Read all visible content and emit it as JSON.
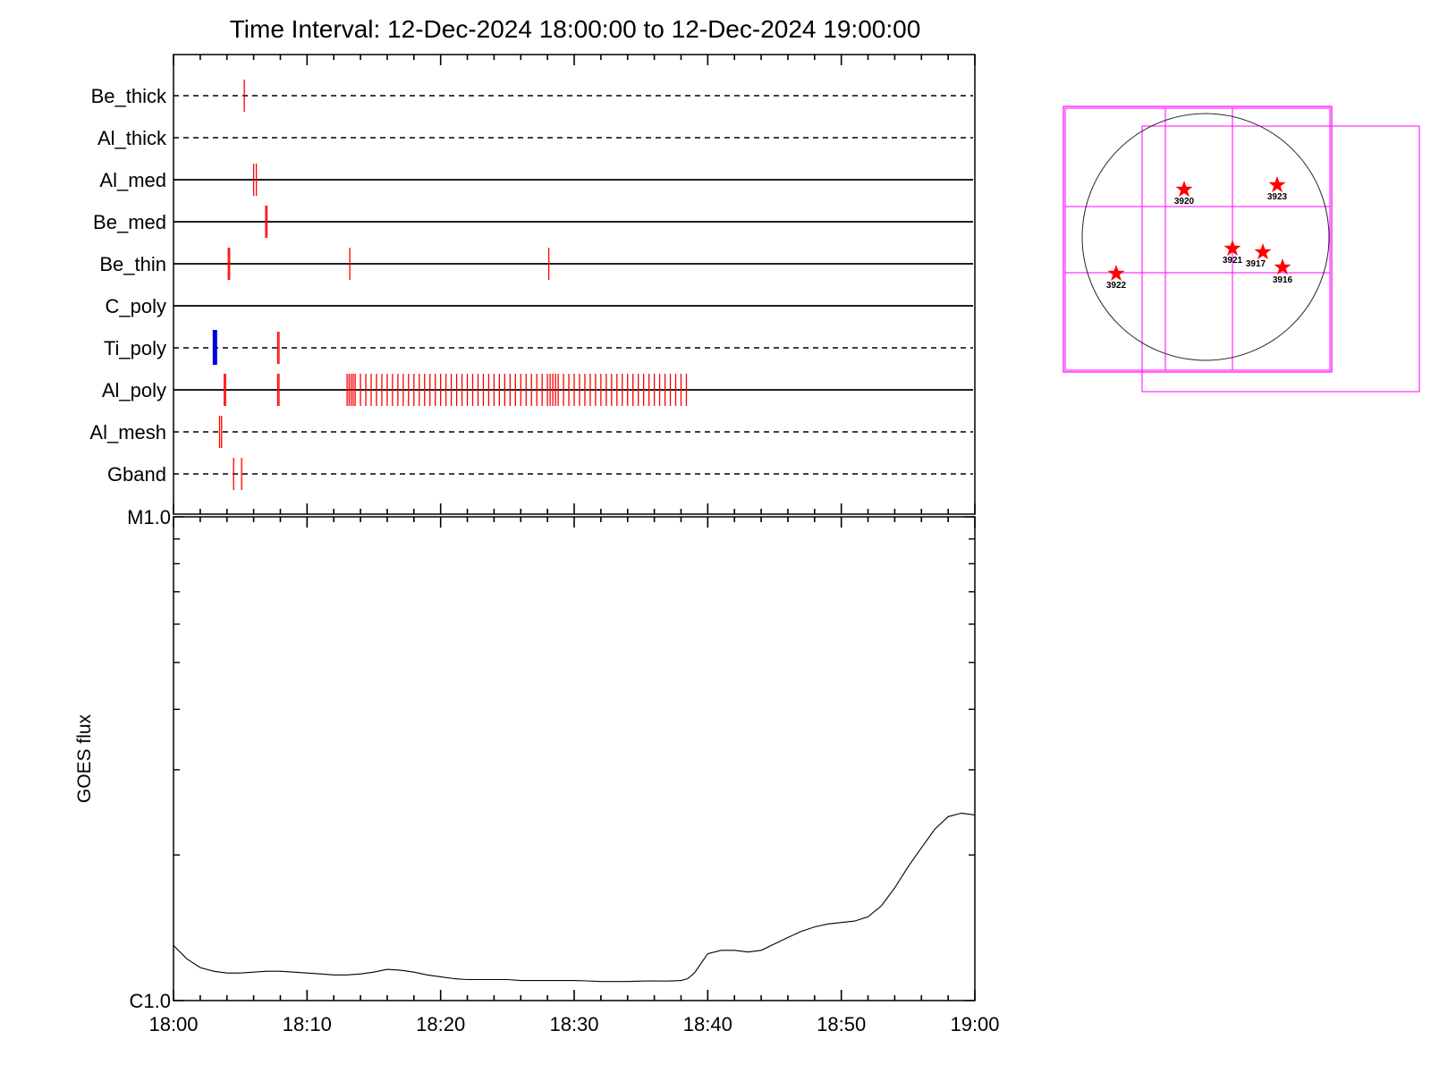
{
  "title": "Time Interval: 12-Dec-2024 18:00:00 to 12-Dec-2024 19:00:00",
  "colors": {
    "exposure": "#ff0000",
    "highlight": "#0000dd",
    "fov": "#ff00ff",
    "axes": "#000000"
  },
  "chart_data": [
    {
      "type": "timeline",
      "x_unit": "minutes after 18:00",
      "xlim": [
        0,
        60
      ],
      "xticks": [
        "18:00",
        "18:10",
        "18:20",
        "18:30",
        "18:40",
        "18:50",
        "19:00"
      ],
      "filters": [
        {
          "name": "Be_thick",
          "style": "dashed",
          "exposures": [
            5.3
          ]
        },
        {
          "name": "Al_thick",
          "style": "dashed",
          "exposures": []
        },
        {
          "name": "Al_med",
          "style": "solid",
          "exposures": [
            6.0,
            6.2
          ]
        },
        {
          "name": "Be_med",
          "style": "solid",
          "exposures": [
            6.9,
            7.0
          ]
        },
        {
          "name": "Be_thin",
          "style": "solid",
          "exposures": [
            4.1,
            4.2,
            13.2,
            28.1
          ]
        },
        {
          "name": "C_poly",
          "style": "solid",
          "exposures": []
        },
        {
          "name": "Ti_poly",
          "style": "dashed",
          "exposures": [
            7.8,
            7.9
          ],
          "highlight": [
            3.1
          ]
        },
        {
          "name": "Al_poly",
          "style": "solid",
          "exposures": [
            3.8,
            3.9,
            7.8,
            7.9,
            13.0,
            13.15,
            13.3,
            13.45,
            13.6,
            14.0,
            14.4,
            14.8,
            15.2,
            15.6,
            16.0,
            16.4,
            16.8,
            17.2,
            17.6,
            18.0,
            18.4,
            18.8,
            19.2,
            19.6,
            20.0,
            20.4,
            20.8,
            21.2,
            21.6,
            22.0,
            22.4,
            22.8,
            23.2,
            23.6,
            24.0,
            24.4,
            24.8,
            25.2,
            25.6,
            26.0,
            26.4,
            26.8,
            27.2,
            27.6,
            28.0,
            28.2,
            28.4,
            28.6,
            28.8,
            29.2,
            29.6,
            30.0,
            30.4,
            30.8,
            31.2,
            31.6,
            32.0,
            32.4,
            32.8,
            33.2,
            33.6,
            34.0,
            34.4,
            34.8,
            35.2,
            35.6,
            36.0,
            36.4,
            36.8,
            37.2,
            37.6,
            38.0,
            38.4
          ]
        },
        {
          "name": "Al_mesh",
          "style": "dashed",
          "exposures": [
            3.45,
            3.6
          ]
        },
        {
          "name": "Gband",
          "style": "dashed",
          "exposures": [
            4.5,
            5.1
          ]
        }
      ]
    },
    {
      "type": "line",
      "ylabel": "GOES flux",
      "ylog": true,
      "ylim": [
        1e-06,
        1e-05
      ],
      "ytick_labels": [
        "C1.0",
        "M1.0"
      ],
      "xlim": [
        0,
        60
      ],
      "xticks": [
        "18:00",
        "18:10",
        "18:20",
        "18:30",
        "18:40",
        "18:50",
        "19:00"
      ],
      "series": [
        {
          "x": [
            0,
            1,
            2,
            3,
            4,
            5,
            6,
            7,
            8,
            9,
            10,
            11,
            12,
            13,
            14,
            15,
            16,
            17,
            18,
            19,
            20,
            21,
            22,
            23,
            24,
            25,
            26,
            27,
            28,
            29,
            30,
            31,
            32,
            33,
            34,
            35,
            36,
            37,
            38,
            38.5,
            39,
            40,
            41,
            42,
            43,
            44,
            45,
            46,
            47,
            48,
            49,
            50,
            51,
            52,
            53,
            54,
            55,
            56,
            57,
            58,
            59,
            60
          ],
          "y": [
            1.3e-06,
            1.22e-06,
            1.17e-06,
            1.15e-06,
            1.14e-06,
            1.14e-06,
            1.145e-06,
            1.15e-06,
            1.15e-06,
            1.145e-06,
            1.14e-06,
            1.135e-06,
            1.13e-06,
            1.13e-06,
            1.135e-06,
            1.145e-06,
            1.16e-06,
            1.155e-06,
            1.145e-06,
            1.13e-06,
            1.12e-06,
            1.11e-06,
            1.105e-06,
            1.105e-06,
            1.105e-06,
            1.105e-06,
            1.1e-06,
            1.1e-06,
            1.1e-06,
            1.1e-06,
            1.1e-06,
            1.098e-06,
            1.095e-06,
            1.095e-06,
            1.095e-06,
            1.097e-06,
            1.098e-06,
            1.097e-06,
            1.1e-06,
            1.11e-06,
            1.14e-06,
            1.25e-06,
            1.27e-06,
            1.27e-06,
            1.26e-06,
            1.27e-06,
            1.31e-06,
            1.35e-06,
            1.39e-06,
            1.42e-06,
            1.44e-06,
            1.45e-06,
            1.46e-06,
            1.49e-06,
            1.57e-06,
            1.71e-06,
            1.89e-06,
            2.07e-06,
            2.26e-06,
            2.4e-06,
            2.44e-06,
            2.42e-06
          ]
        }
      ]
    }
  ],
  "solar_disk": {
    "active_regions": [
      {
        "number": "3920"
      },
      {
        "number": "3923"
      },
      {
        "number": "3921"
      },
      {
        "number": "3917"
      },
      {
        "number": "3916"
      },
      {
        "number": "3922"
      }
    ]
  }
}
